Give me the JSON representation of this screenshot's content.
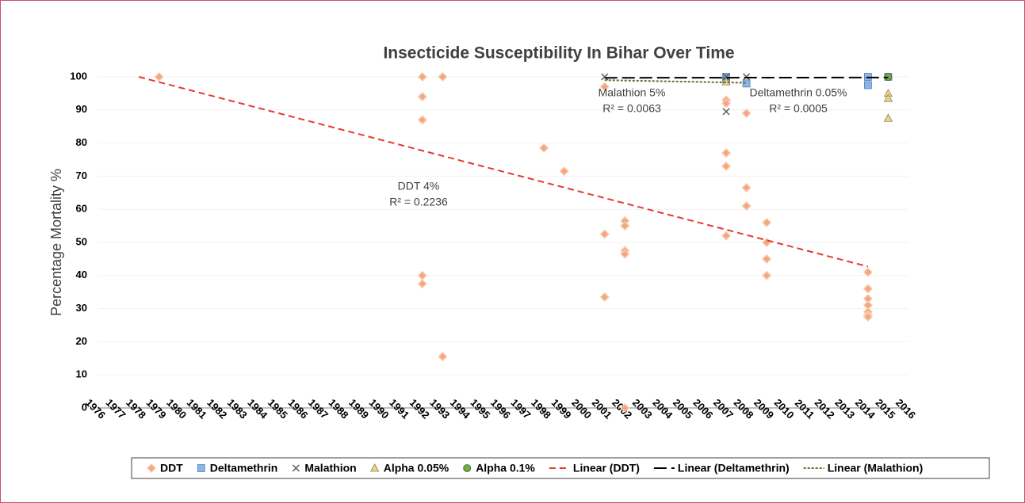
{
  "chart_data": {
    "type": "scatter",
    "title": "Insecticide Susceptibility In Bihar Over Time",
    "y_label": "Percentage Mortality %",
    "xlim": [
      1976,
      2016
    ],
    "xticks": [
      1976,
      1977,
      1978,
      1979,
      1980,
      1981,
      1982,
      1983,
      1984,
      1985,
      1986,
      1987,
      1988,
      1989,
      1990,
      1991,
      1992,
      1993,
      1994,
      1995,
      1996,
      1997,
      1998,
      1999,
      2000,
      2001,
      2002,
      2003,
      2004,
      2005,
      2006,
      2007,
      2008,
      2009,
      2010,
      2011,
      2012,
      2013,
      2014,
      2015,
      2016
    ],
    "ylim": [
      0,
      100
    ],
    "yticks": [
      0,
      10,
      20,
      30,
      40,
      50,
      60,
      70,
      80,
      90,
      100
    ],
    "grid": true,
    "legend": "bottom",
    "series": [
      {
        "name": "DDT",
        "color": "#f4a582",
        "marker": "diamond",
        "x": [
          1979,
          1992,
          1992,
          1992,
          1992,
          1992,
          1993,
          1993,
          1998,
          1999,
          2001,
          2001,
          2001,
          2002,
          2002,
          2002,
          2002,
          2002,
          2007,
          2007,
          2007,
          2007,
          2007,
          2008,
          2008,
          2008,
          2009,
          2009,
          2009,
          2009,
          2014,
          2014,
          2014,
          2014,
          2014,
          2014,
          2014
        ],
        "values": [
          100,
          100,
          94,
          87,
          40,
          37.5,
          100,
          15.5,
          78.5,
          71.5,
          52.5,
          33.5,
          97,
          56.5,
          55,
          47.5,
          46.5,
          0,
          93,
          92,
          77,
          73,
          52,
          89,
          66.5,
          61,
          56,
          50,
          45,
          40,
          41,
          36,
          33,
          31,
          29,
          28,
          27.5
        ]
      },
      {
        "name": "Deltamethrin",
        "color": "#8eb4e3",
        "marker": "square",
        "x": [
          2007,
          2007,
          2008,
          2014,
          2014,
          2015
        ],
        "values": [
          100,
          99.5,
          98,
          100,
          97.5,
          100
        ]
      },
      {
        "name": "Malathion",
        "color": "#595959",
        "marker": "x",
        "x": [
          2001,
          2007,
          2007,
          2007,
          2008
        ],
        "values": [
          100,
          100,
          99,
          89.5,
          100
        ]
      },
      {
        "name": "Alpha 0.05%",
        "color": "#f5d76e",
        "marker": "triangle",
        "x": [
          2007,
          2015,
          2015,
          2015
        ],
        "values": [
          98.5,
          95,
          93.5,
          87.5
        ]
      },
      {
        "name": "Alpha 0.1%",
        "color": "#70ad47",
        "marker": "circle",
        "x": [
          2015
        ],
        "values": [
          100
        ]
      },
      {
        "name": "Linear (DDT)",
        "color": "#e03c31",
        "line_style": "dashed",
        "x": [
          1978,
          2014
        ],
        "values": [
          100,
          42.7
        ]
      },
      {
        "name": "Linear (Deltamethrin)",
        "color": "#000000",
        "line_style": "long-dash",
        "x": [
          2001,
          2015
        ],
        "values": [
          99.7,
          99.8
        ]
      },
      {
        "name": "Linear (Malathion)",
        "color": "#6b6b2e",
        "line_style": "dotted",
        "x": [
          2001,
          2008
        ],
        "values": [
          99,
          98.2
        ]
      }
    ],
    "annotations": [
      "DDT 4%",
      "R² = 0.2236",
      "Malathion 5%",
      "R² = 0.0063",
      "Deltamethrin 0.05%",
      "R² = 0.0005"
    ]
  }
}
